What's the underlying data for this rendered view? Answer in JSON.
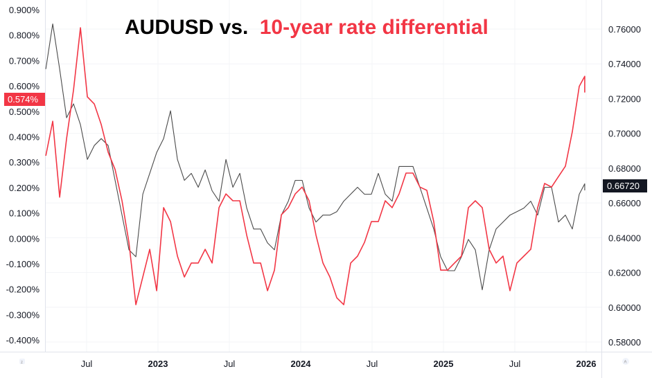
{
  "chart_data": {
    "type": "line",
    "title": {
      "part1": "AUDUSD vs.",
      "part2": "10-year rate differential"
    },
    "colors": {
      "rate_diff": "#f23645",
      "audusd": "#2a2a2a",
      "title_black": "#000000",
      "title_red": "#f23645"
    },
    "x_axis": {
      "start_year": 2022.214,
      "step_years": 0.04854,
      "ticks": [
        {
          "label": "Jul",
          "year": 2022.5,
          "bold": false
        },
        {
          "label": "2023",
          "year": 2023.0,
          "bold": true
        },
        {
          "label": "Jul",
          "year": 2023.5,
          "bold": false
        },
        {
          "label": "2024",
          "year": 2024.0,
          "bold": true
        },
        {
          "label": "Jul",
          "year": 2024.5,
          "bold": false
        },
        {
          "label": "2025",
          "year": 2025.0,
          "bold": true
        },
        {
          "label": "Jul",
          "year": 2025.5,
          "bold": false
        },
        {
          "label": "2026",
          "year": 2026.0,
          "bold": true
        }
      ]
    },
    "left_axis": {
      "ylim": [
        -0.45,
        0.93
      ],
      "ticks": [
        "0.900%",
        "0.800%",
        "0.700%",
        "0.600%",
        "0.500%",
        "0.400%",
        "0.300%",
        "0.200%",
        "0.100%",
        "0.000%",
        "-0.100%",
        "-0.200%",
        "-0.300%",
        "-0.400%"
      ],
      "tick_values": [
        0.9,
        0.8,
        0.7,
        0.6,
        0.5,
        0.4,
        0.3,
        0.2,
        0.1,
        0.0,
        -0.1,
        -0.2,
        -0.3,
        -0.4
      ],
      "last_value_label": "0.574%"
    },
    "right_axis": {
      "ylim": [
        0.5735,
        0.7765
      ],
      "ticks": [
        "0.76000",
        "0.74000",
        "0.72000",
        "0.70000",
        "0.68000",
        "0.66000",
        "0.64000",
        "0.62000",
        "0.60000",
        "0.58000"
      ],
      "tick_values": [
        0.76,
        0.74,
        0.72,
        0.7,
        0.68,
        0.66,
        0.64,
        0.62,
        0.6,
        0.58
      ],
      "last_value_label": "0.66720"
    },
    "series": [
      {
        "name": "10-year rate differential (%)",
        "axis": "left",
        "values": [
          0.325,
          0.461,
          0.162,
          0.393,
          0.584,
          0.829,
          0.557,
          0.529,
          0.448,
          0.339,
          0.271,
          0.148,
          -0.016,
          -0.261,
          -0.152,
          -0.043,
          -0.206,
          0.121,
          0.066,
          -0.07,
          -0.152,
          -0.097,
          -0.097,
          -0.043,
          -0.097,
          0.121,
          0.175,
          0.148,
          0.148,
          0.012,
          -0.097,
          -0.097,
          -0.206,
          -0.125,
          0.093,
          0.121,
          0.175,
          0.202,
          0.148,
          0.012,
          -0.097,
          -0.152,
          -0.234,
          -0.261,
          -0.097,
          -0.07,
          -0.016,
          0.066,
          0.066,
          0.148,
          0.121,
          0.175,
          0.257,
          0.257,
          0.202,
          0.189,
          0.066,
          -0.125,
          -0.125,
          -0.097,
          -0.07,
          0.121,
          0.148,
          0.121,
          -0.043,
          -0.097,
          -0.07,
          -0.206,
          -0.097,
          -0.07,
          -0.043,
          0.121,
          0.216,
          0.202,
          0.243,
          0.284,
          0.42,
          0.598,
          0.638,
          0.574
        ]
      },
      {
        "name": "AUDUSD",
        "axis": "right",
        "values": [
          0.737,
          0.763,
          0.737,
          0.709,
          0.717,
          0.705,
          0.685,
          0.693,
          0.697,
          0.693,
          0.673,
          0.653,
          0.633,
          0.629,
          0.665,
          0.677,
          0.689,
          0.697,
          0.713,
          0.685,
          0.673,
          0.677,
          0.669,
          0.679,
          0.667,
          0.661,
          0.685,
          0.669,
          0.677,
          0.657,
          0.645,
          0.645,
          0.637,
          0.633,
          0.653,
          0.661,
          0.673,
          0.673,
          0.657,
          0.649,
          0.653,
          0.653,
          0.655,
          0.661,
          0.665,
          0.669,
          0.665,
          0.665,
          0.677,
          0.665,
          0.661,
          0.681,
          0.681,
          0.681,
          0.669,
          0.657,
          0.645,
          0.629,
          0.621,
          0.621,
          0.629,
          0.639,
          0.633,
          0.61,
          0.633,
          0.645,
          0.649,
          0.653,
          0.655,
          0.657,
          0.661,
          0.653,
          0.669,
          0.669,
          0.649,
          0.653,
          0.645,
          0.665,
          0.671,
          0.6672
        ]
      }
    ],
    "grid": true
  },
  "corner_icons": {
    "left": "scale-toggle-icon",
    "right": "auto-scale-icon",
    "right_label": "A"
  }
}
